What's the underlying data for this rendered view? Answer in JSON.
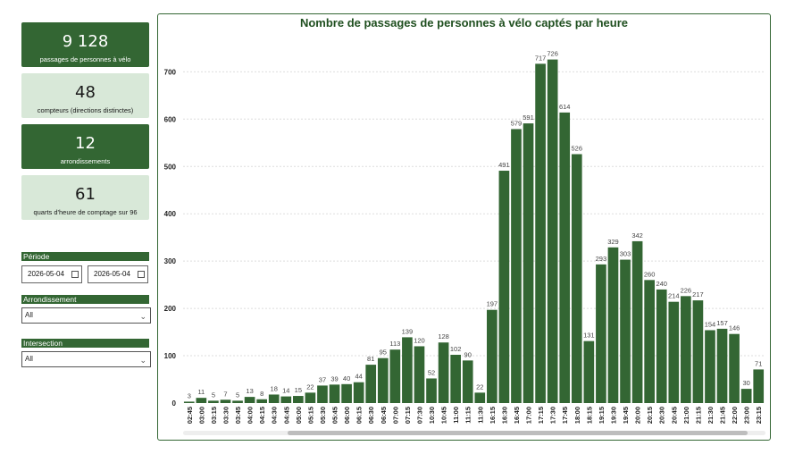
{
  "kpis": [
    {
      "value": "9 128",
      "label": "passages de personnes à vélo",
      "theme": "dark"
    },
    {
      "value": "48",
      "label": "compteurs (directions distinctes)",
      "theme": "light"
    },
    {
      "value": "12",
      "label": "arrondissements",
      "theme": "dark"
    },
    {
      "value": "61",
      "label": "quarts d'heure de comptage sur 96",
      "theme": "light"
    }
  ],
  "filters": {
    "periode_label": "Période",
    "date_start": "2026-05-04",
    "date_end": "2026-05-04",
    "arrondissement_label": "Arrondissement",
    "arrondissement_value": "All",
    "intersection_label": "Intersection",
    "intersection_value": "All"
  },
  "colors": {
    "bar": "#336633",
    "accent": "#1f4f1f"
  },
  "chart_data": {
    "type": "bar",
    "title": "Nombre de passages de personnes à vélo captés par heure",
    "xlabel": "",
    "ylabel": "",
    "ylim": [
      0,
      780
    ],
    "yticks": [
      0,
      100,
      200,
      300,
      400,
      500,
      600,
      700
    ],
    "grid": true,
    "categories": [
      "02:45",
      "03:00",
      "03:15",
      "03:30",
      "03:45",
      "04:00",
      "04:15",
      "04:30",
      "04:45",
      "05:00",
      "05:15",
      "05:30",
      "05:45",
      "06:00",
      "06:15",
      "06:30",
      "06:45",
      "07:00",
      "07:15",
      "07:30",
      "10:30",
      "10:45",
      "11:00",
      "11:15",
      "11:30",
      "16:15",
      "16:30",
      "16:45",
      "17:00",
      "17:15",
      "17:30",
      "17:45",
      "18:00",
      "18:15",
      "19:15",
      "19:30",
      "19:45",
      "20:00",
      "20:15",
      "20:30",
      "20:45",
      "21:00",
      "21:15",
      "21:30",
      "21:45",
      "22:00",
      "23:00",
      "23:15"
    ],
    "values": [
      3,
      11,
      5,
      7,
      5,
      13,
      8,
      18,
      14,
      15,
      22,
      37,
      39,
      40,
      44,
      81,
      95,
      113,
      139,
      120,
      52,
      128,
      102,
      90,
      22,
      197,
      491,
      579,
      591,
      717,
      726,
      614,
      526,
      131,
      293,
      329,
      303,
      342,
      260,
      240,
      214,
      226,
      217,
      154,
      157,
      146,
      30,
      71
    ]
  }
}
